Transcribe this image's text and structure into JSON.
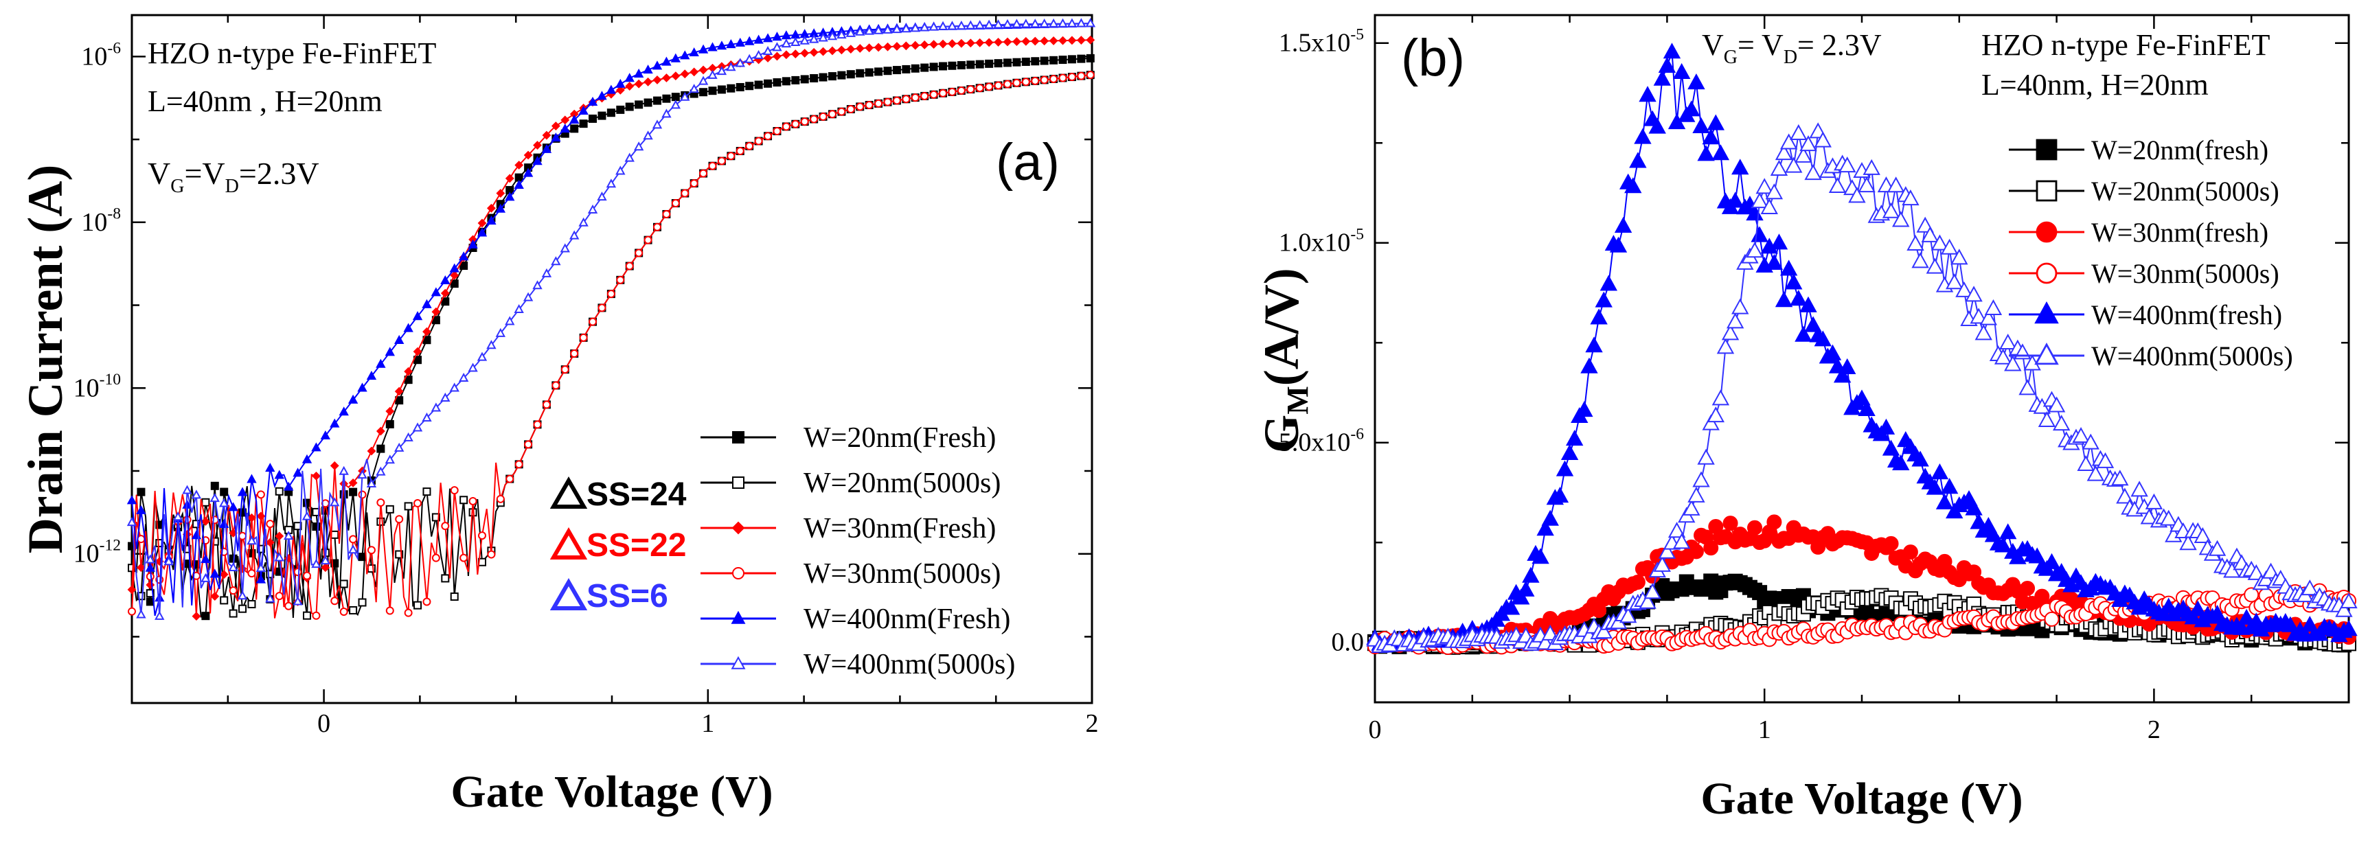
{
  "colors": {
    "black": "#000000",
    "red": "#ff0000",
    "blue": "#0000ff",
    "lightblue": "#3333ff"
  },
  "chart_data": [
    {
      "id": "a",
      "type": "line",
      "panel_label": "(a)",
      "xlabel": "Gate Voltage (V)",
      "ylabel": "Drain Current (A)",
      "xlim": [
        -0.5,
        2.0
      ],
      "ylim_log10": [
        -13.8,
        -5.5
      ],
      "yscale": "log",
      "x_ticks": [
        {
          "v": 0,
          "label": "0"
        },
        {
          "v": 1,
          "label": "1"
        },
        {
          "v": 2,
          "label": "2"
        }
      ],
      "y_ticks": [
        {
          "exp": -6,
          "mant": "10",
          "sup": "-6"
        },
        {
          "exp": -8,
          "mant": "10",
          "sup": "-8"
        },
        {
          "exp": -10,
          "mant": "10",
          "sup": "-10"
        },
        {
          "exp": -12,
          "mant": "10",
          "sup": "-12"
        }
      ],
      "annotations": {
        "line1": "HZO n-type Fe-FinFET",
        "line2": "L=40nm , H=20nm",
        "vg_main": "V",
        "vg_sub1": "G",
        "vg_eq": "=V",
        "vg_sub2": "D",
        "vg_tail": "=2.3V"
      },
      "ss_labels": [
        {
          "text": "SS=24",
          "color": "#000000"
        },
        {
          "text": "SS=22",
          "color": "#ff0000"
        },
        {
          "text": "SS=6",
          "color": "#3333ff"
        }
      ],
      "legend_position": "bottom-right",
      "series": [
        {
          "name": "W=20nm(Fresh)",
          "color": "#000000",
          "marker": "square",
          "fill": true,
          "seed": 1,
          "x": [
            -0.5,
            -0.3,
            -0.1,
            0.0,
            0.05,
            0.1,
            0.15,
            0.2,
            0.3,
            0.4,
            0.5,
            0.6,
            0.7,
            0.8,
            0.9,
            1.0,
            1.2,
            1.4,
            1.6,
            1.8,
            2.0
          ],
          "logy": [
            -11.9,
            -11.9,
            -11.9,
            -11.9,
            -11.8,
            -11.5,
            -10.7,
            -10.1,
            -9.1,
            -8.2,
            -7.5,
            -7.0,
            -6.75,
            -6.6,
            -6.5,
            -6.42,
            -6.3,
            -6.2,
            -6.12,
            -6.07,
            -6.02
          ]
        },
        {
          "name": "W=20nm(5000s)",
          "color": "#000000",
          "marker": "square",
          "fill": false,
          "seed": 2,
          "x": [
            -0.5,
            -0.3,
            0.0,
            0.2,
            0.3,
            0.35,
            0.45,
            0.5,
            0.6,
            0.7,
            0.8,
            0.9,
            1.0,
            1.2,
            1.4,
            1.6,
            1.8,
            2.0
          ],
          "logy": [
            -11.9,
            -11.9,
            -11.9,
            -11.9,
            -11.8,
            -11.6,
            -11.3,
            -11.0,
            -10.0,
            -9.2,
            -8.5,
            -7.85,
            -7.35,
            -6.85,
            -6.6,
            -6.45,
            -6.32,
            -6.22
          ]
        },
        {
          "name": "W=30nm(Fresh)",
          "color": "#ff0000",
          "marker": "diamond",
          "fill": true,
          "seed": 3,
          "x": [
            -0.5,
            -0.3,
            -0.1,
            0.0,
            0.1,
            0.2,
            0.3,
            0.4,
            0.5,
            0.6,
            0.7,
            0.8,
            1.0,
            1.2,
            1.4,
            1.6,
            1.8,
            2.0
          ],
          "logy": [
            -11.9,
            -11.9,
            -11.8,
            -11.6,
            -11.0,
            -10.0,
            -9.0,
            -8.1,
            -7.35,
            -6.85,
            -6.55,
            -6.35,
            -6.15,
            -5.98,
            -5.9,
            -5.85,
            -5.82,
            -5.8
          ]
        },
        {
          "name": "W=30nm(5000s)",
          "color": "#ff0000",
          "marker": "circle",
          "fill": false,
          "seed": 4,
          "x": [
            -0.5,
            -0.3,
            0.0,
            0.2,
            0.3,
            0.4,
            0.45,
            0.5,
            0.6,
            0.7,
            0.8,
            0.9,
            1.0,
            1.2,
            1.4,
            1.6,
            1.8,
            2.0
          ],
          "logy": [
            -11.9,
            -11.9,
            -11.9,
            -11.9,
            -11.8,
            -11.6,
            -11.3,
            -11.0,
            -10.0,
            -9.2,
            -8.5,
            -7.85,
            -7.35,
            -6.85,
            -6.6,
            -6.45,
            -6.32,
            -6.22
          ]
        },
        {
          "name": "W=400nm(Fresh)",
          "color": "#0000ff",
          "marker": "triangle",
          "fill": true,
          "seed": 5,
          "x": [
            -0.5,
            -0.3,
            -0.2,
            -0.15,
            -0.05,
            0.1,
            0.3,
            0.5,
            0.6,
            0.7,
            0.8,
            0.9,
            1.0,
            1.2,
            1.4,
            1.6,
            1.8,
            2.0
          ],
          "logy": [
            -11.9,
            -11.9,
            -11.8,
            -11.6,
            -10.9,
            -10.0,
            -8.8,
            -7.6,
            -7.0,
            -6.55,
            -6.25,
            -6.05,
            -5.9,
            -5.75,
            -5.68,
            -5.64,
            -5.62,
            -5.6
          ]
        },
        {
          "name": "W=400nm(5000s)",
          "color": "#3333ff",
          "marker": "triangle",
          "fill": false,
          "seed": 6,
          "x": [
            -0.5,
            -0.2,
            0.0,
            0.1,
            0.2,
            0.3,
            0.4,
            0.5,
            0.6,
            0.7,
            0.8,
            0.9,
            1.0,
            1.2,
            1.4,
            1.6,
            1.8,
            2.0
          ],
          "logy": [
            -11.9,
            -11.9,
            -11.6,
            -11.3,
            -10.7,
            -10.2,
            -9.7,
            -9.1,
            -8.5,
            -7.85,
            -7.2,
            -6.65,
            -6.25,
            -5.85,
            -5.7,
            -5.64,
            -5.61,
            -5.6
          ]
        }
      ]
    },
    {
      "id": "b",
      "type": "line",
      "panel_label": "(b)",
      "xlabel": "Gate Voltage (V)",
      "ylabel_main": "G",
      "ylabel_sub": "M",
      "ylabel_tail": "(A/V)",
      "xlim": [
        0,
        2.5
      ],
      "ylim": [
        -1.5e-06,
        1.57e-05
      ],
      "x_ticks": [
        {
          "v": 0,
          "label": "0"
        },
        {
          "v": 1,
          "label": "1"
        },
        {
          "v": 2,
          "label": "2"
        }
      ],
      "y_ticks": [
        {
          "v": 0,
          "label": "0.0",
          "sup": ""
        },
        {
          "v": 5e-06,
          "label": "5.0x10",
          "sup": "-6"
        },
        {
          "v": 1e-05,
          "label": "1.0x10",
          "sup": "-5"
        },
        {
          "v": 1.5e-05,
          "label": "1.5x10",
          "sup": "-5"
        }
      ],
      "annotations": {
        "vg_main": "V",
        "vg_sub1": "G",
        "vg_eq": "= V",
        "vg_sub2": "D",
        "vg_tail": "= 2.3V",
        "line1": "HZO n-type Fe-FinFET",
        "line2": "L=40nm, H=20nm"
      },
      "legend_position": "top-right",
      "series": [
        {
          "name": "W=20nm(fresh)",
          "color": "#000000",
          "marker": "square",
          "fill": true,
          "seed": 7,
          "x": [
            0,
            0.3,
            0.45,
            0.55,
            0.65,
            0.75,
            0.85,
            0.95,
            1.05,
            1.2,
            1.4,
            1.6,
            1.8,
            2.0,
            2.2,
            2.4,
            2.5
          ],
          "y": [
            0,
            0,
            1e-07,
            3e-07,
            8e-07,
            1.3e-06,
            1.45e-06,
            1.3e-06,
            1.1e-06,
            8e-07,
            6e-07,
            5e-07,
            4e-07,
            3e-07,
            2e-07,
            1e-07,
            0
          ]
        },
        {
          "name": "W=20nm(5000s)",
          "color": "#000000",
          "marker": "square",
          "fill": false,
          "seed": 8,
          "x": [
            0,
            0.5,
            0.7,
            0.8,
            0.9,
            1.0,
            1.1,
            1.2,
            1.3,
            1.4,
            1.5,
            1.6,
            1.8,
            2.0,
            2.2,
            2.4,
            2.5
          ],
          "y": [
            0,
            0,
            1e-07,
            2e-07,
            4e-07,
            6e-07,
            8e-07,
            9.5e-07,
            1e-06,
            9.5e-07,
            8.5e-07,
            7e-07,
            5e-07,
            3e-07,
            2e-07,
            1e-07,
            0
          ]
        },
        {
          "name": "W=30nm(fresh)",
          "color": "#ff0000",
          "marker": "circle",
          "fill": true,
          "seed": 9,
          "x": [
            0,
            0.3,
            0.4,
            0.5,
            0.6,
            0.7,
            0.8,
            0.9,
            1.0,
            1.1,
            1.2,
            1.3,
            1.4,
            1.5,
            1.6,
            1.7,
            1.8,
            2.0,
            2.2,
            2.4,
            2.5
          ],
          "y": [
            0,
            1e-07,
            3e-07,
            6e-07,
            1.1e-06,
            1.8e-06,
            2.4e-06,
            2.7e-06,
            2.8e-06,
            2.7e-06,
            2.5e-06,
            2.3e-06,
            2e-06,
            1.7e-06,
            1.4e-06,
            1.1e-06,
            9e-07,
            6e-07,
            4e-07,
            3e-07,
            2e-07
          ]
        },
        {
          "name": "W=30nm(5000s)",
          "color": "#ff0000",
          "marker": "circle",
          "fill": false,
          "seed": 10,
          "x": [
            0,
            0.6,
            0.8,
            1.0,
            1.2,
            1.4,
            1.6,
            1.8,
            2.0,
            2.2,
            2.4,
            2.5
          ],
          "y": [
            0,
            0,
            1e-07,
            2e-07,
            3e-07,
            4e-07,
            6e-07,
            8e-07,
            9e-07,
            1e-06,
            1.1e-06,
            1.2e-06
          ]
        },
        {
          "name": "W=400nm(fresh)",
          "color": "#0000ff",
          "marker": "triangle",
          "fill": true,
          "seed": 11,
          "x": [
            0,
            0.2,
            0.3,
            0.35,
            0.4,
            0.45,
            0.5,
            0.55,
            0.6,
            0.65,
            0.7,
            0.75,
            0.8,
            0.85,
            0.9,
            1.0,
            1.1,
            1.2,
            1.3,
            1.4,
            1.5,
            1.6,
            1.7,
            1.8,
            2.0,
            2.2,
            2.4,
            2.5
          ],
          "y": [
            0,
            1e-07,
            4e-07,
            9e-07,
            1.7e-06,
            3e-06,
            4.5e-06,
            6.5e-06,
            9e-06,
            1.15e-05,
            1.3e-05,
            1.4e-05,
            1.38e-05,
            1.3e-05,
            1.18e-05,
            1e-05,
            8.2e-06,
            6.6e-06,
            5.3e-06,
            4.3e-06,
            3.5e-06,
            2.7e-06,
            2e-06,
            1.5e-06,
            9e-07,
            5e-07,
            3e-07,
            2e-07
          ]
        },
        {
          "name": "W=400nm(5000s)",
          "color": "#3333ff",
          "marker": "triangle",
          "fill": false,
          "seed": 12,
          "x": [
            0,
            0.5,
            0.6,
            0.7,
            0.8,
            0.85,
            0.9,
            0.95,
            1.0,
            1.05,
            1.1,
            1.2,
            1.3,
            1.4,
            1.5,
            1.6,
            1.7,
            1.8,
            1.9,
            2.0,
            2.2,
            2.4,
            2.5
          ],
          "y": [
            0,
            1e-07,
            4e-07,
            1.2e-06,
            3e-06,
            4.8e-06,
            7e-06,
            9.3e-06,
            1.12e-05,
            1.22e-05,
            1.24e-05,
            1.2e-05,
            1.12e-05,
            1.02e-05,
            9e-06,
            7.7e-06,
            6.3e-06,
            5e-06,
            4e-06,
            3.2e-06,
            2e-06,
            1.2e-06,
            9e-07
          ]
        }
      ]
    }
  ]
}
